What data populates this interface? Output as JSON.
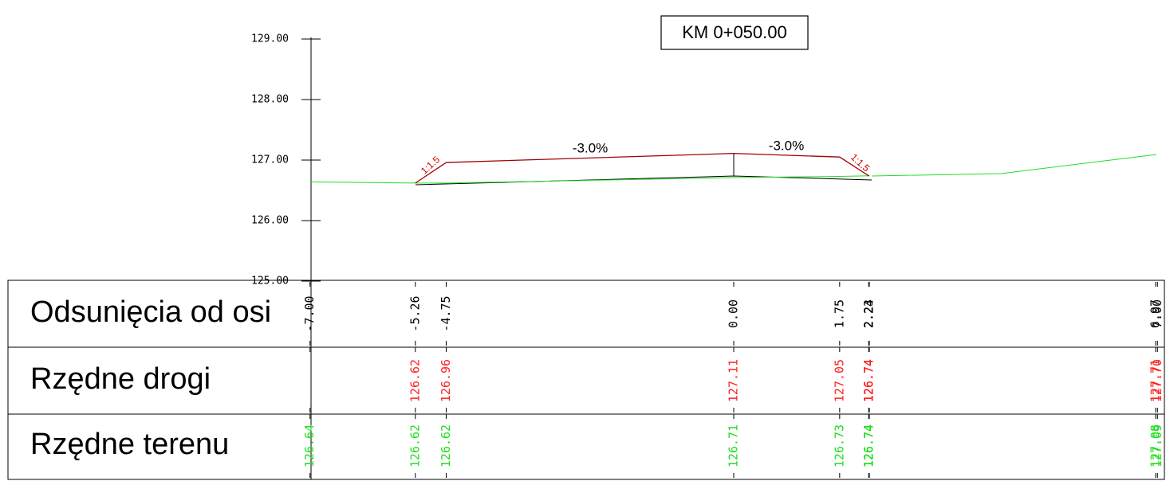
{
  "title": "KM 0+050.00",
  "axis_labels": [
    "129.00",
    "128.00",
    "127.00",
    "126.00",
    "125.00"
  ],
  "slope_labels": [
    "-3.0%",
    "-3.0%"
  ],
  "side_slope_labels": [
    "1:1.5",
    "1:1.5"
  ],
  "table": {
    "row_labels": [
      "Odsunięcia od osi",
      "Rzędne drogi",
      "Rzędne terenu"
    ],
    "columns": [
      {
        "offset": "-7.00",
        "terrain": "126.64"
      },
      {
        "offset": "-5.26",
        "road": "126.62",
        "terrain": "126.62"
      },
      {
        "offset": "-4.75",
        "road": "126.96",
        "terrain": "126.62"
      },
      {
        "offset": "0.00",
        "road": "127.11",
        "terrain": "126.71"
      },
      {
        "offset": "1.75",
        "road": "127.05",
        "terrain": "126.73"
      },
      {
        "offset": "2.23",
        "road": "126.74",
        "terrain": "126.74"
      },
      {
        "offset": "2.24",
        "road": "126.74",
        "terrain": "126.74"
      },
      {
        "offset": "6.97",
        "road": "127.71",
        "terrain": "127.08"
      },
      {
        "offset": "7.00",
        "road": "127.70",
        "terrain": "127.09"
      }
    ]
  }
}
